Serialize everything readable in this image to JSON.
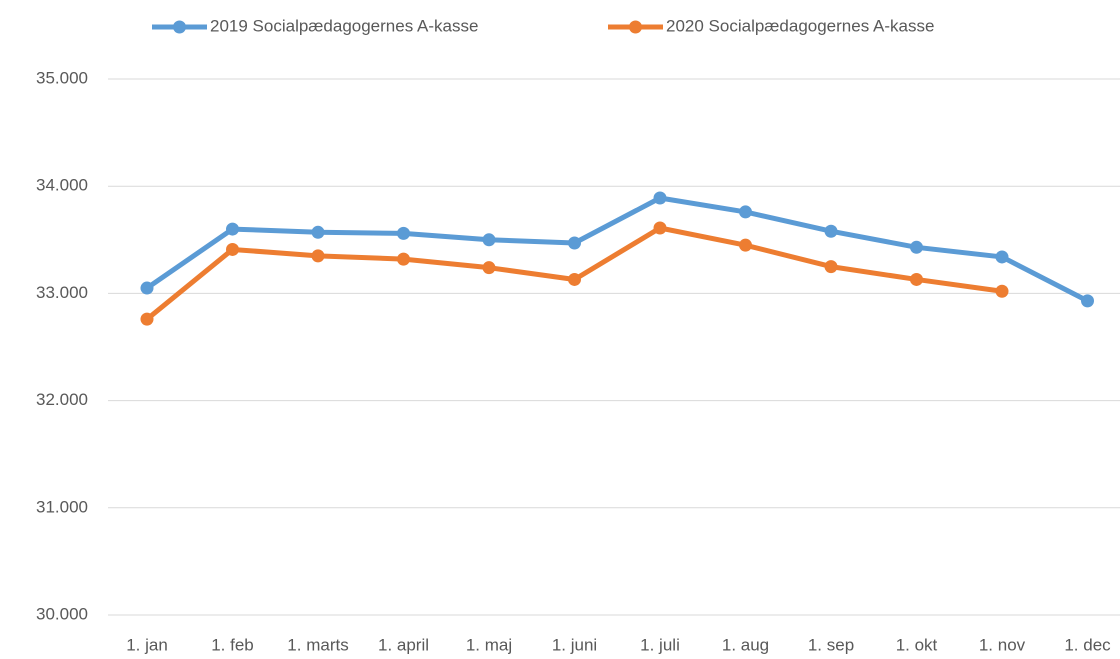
{
  "chart_data": {
    "type": "line",
    "categories": [
      "1. jan",
      "1. feb",
      "1. marts",
      "1. april",
      "1. maj",
      "1. juni",
      "1. juli",
      "1. aug",
      "1. sep",
      "1. okt",
      "1. nov",
      "1. dec"
    ],
    "series": [
      {
        "name": "2019 Socialpædagogernes A-kasse",
        "color": "#5b9bd5",
        "values": [
          33050,
          33600,
          33570,
          33560,
          33500,
          33470,
          33890,
          33760,
          33580,
          33430,
          33340,
          32930
        ]
      },
      {
        "name": "2020 Socialpædagogernes A-kasse",
        "color": "#ed7d31",
        "values": [
          32760,
          33410,
          33350,
          33320,
          33240,
          33130,
          33610,
          33450,
          33250,
          33130,
          33020,
          null
        ]
      }
    ],
    "ylim": [
      30000,
      35000
    ],
    "yticks": [
      {
        "value": 30000,
        "label": "30.000"
      },
      {
        "value": 31000,
        "label": "31.000"
      },
      {
        "value": 32000,
        "label": "32.000"
      },
      {
        "value": 33000,
        "label": "33.000"
      },
      {
        "value": 34000,
        "label": "34.000"
      },
      {
        "value": 35000,
        "label": "35.000"
      }
    ],
    "grid": true,
    "legend": "top"
  }
}
